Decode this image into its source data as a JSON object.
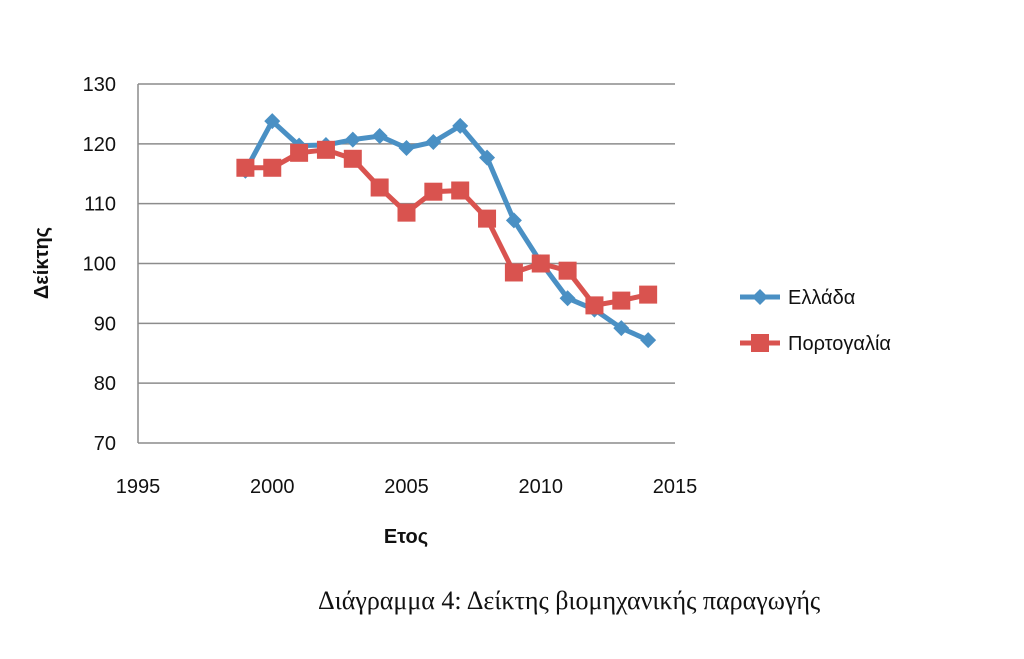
{
  "caption": "Διάγραμμα 4: Δείκτης βιομηχανικής παραγωγής",
  "chart_data": {
    "type": "line",
    "xlabel": "Ετος",
    "ylabel": "Δείκτης",
    "xlim": [
      1995,
      2015
    ],
    "ylim": [
      70,
      130
    ],
    "xticks": [
      1995,
      2000,
      2005,
      2010,
      2015
    ],
    "yticks": [
      70,
      80,
      90,
      100,
      110,
      120,
      130
    ],
    "grid": "horizontal",
    "legend": "right",
    "series": [
      {
        "name": "Ελλάδα",
        "color": "#4a90c4",
        "marker": "diamond",
        "x": [
          1999,
          2000,
          2001,
          2002,
          2003,
          2004,
          2005,
          2006,
          2007,
          2008,
          2009,
          2010,
          2011,
          2012,
          2013,
          2014
        ],
        "values": [
          115.5,
          123.8,
          119.7,
          119.8,
          120.7,
          121.3,
          119.3,
          120.3,
          123.0,
          117.7,
          107.2,
          100.2,
          94.2,
          92.3,
          89.2,
          87.2
        ]
      },
      {
        "name": "Πορτογαλία",
        "color": "#d9534f",
        "marker": "square",
        "x": [
          1999,
          2000,
          2001,
          2002,
          2003,
          2004,
          2005,
          2006,
          2007,
          2008,
          2009,
          2010,
          2011,
          2012,
          2013,
          2014
        ],
        "values": [
          116.0,
          116.0,
          118.5,
          119.0,
          117.5,
          112.7,
          108.5,
          112.0,
          112.2,
          107.5,
          98.5,
          100.0,
          98.8,
          93.0,
          93.8,
          94.8
        ]
      }
    ]
  }
}
